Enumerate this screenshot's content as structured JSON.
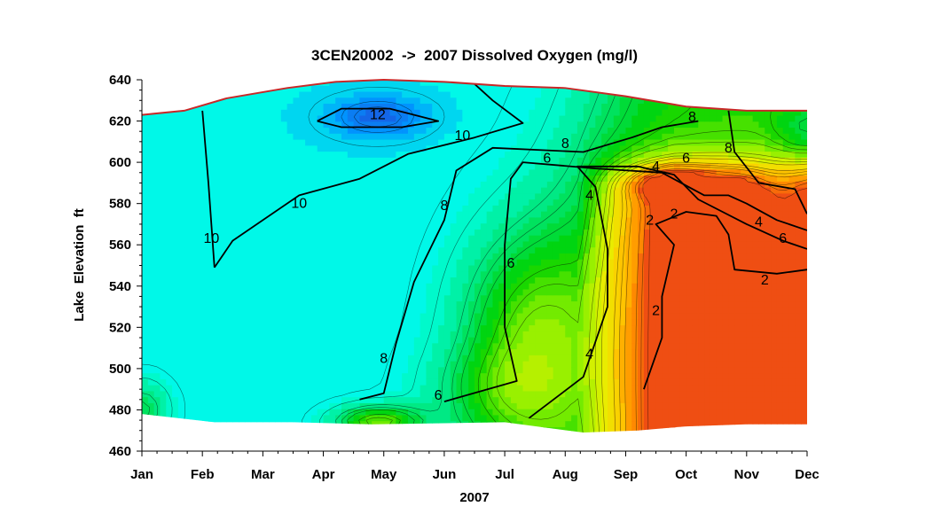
{
  "chart_data": {
    "type": "heatmap",
    "subtype": "contour",
    "title": "3CEN20002  ->  2007 Dissolved Oxygen (mg/l)",
    "xlabel": "2007",
    "ylabel": "Lake  Elevation  ft",
    "x_ticks": [
      "Jan",
      "Feb",
      "Mar",
      "Apr",
      "May",
      "Jun",
      "Jul",
      "Aug",
      "Sep",
      "Oct",
      "Nov",
      "Dec"
    ],
    "y_ticks": [
      460,
      480,
      500,
      520,
      540,
      560,
      580,
      600,
      620,
      640
    ],
    "ylim": [
      460,
      640
    ],
    "xlim": [
      0,
      11
    ],
    "z_range": [
      0,
      14
    ],
    "colormap": [
      "#e8301c",
      "#ff8c00",
      "#ffc800",
      "#e6f000",
      "#8cf000",
      "#00d200",
      "#00e678",
      "#00ffe6",
      "#0096ff",
      "#1e50dc"
    ],
    "surface_color": "#c82828",
    "surface_elevation": [
      {
        "month": 0,
        "elev": 623
      },
      {
        "month": 0.7,
        "elev": 625
      },
      {
        "month": 1.4,
        "elev": 631
      },
      {
        "month": 2.4,
        "elev": 636
      },
      {
        "month": 3.2,
        "elev": 639
      },
      {
        "month": 4.0,
        "elev": 640
      },
      {
        "month": 5.0,
        "elev": 639
      },
      {
        "month": 6.0,
        "elev": 637
      },
      {
        "month": 7.0,
        "elev": 636
      },
      {
        "month": 8.0,
        "elev": 632
      },
      {
        "month": 9.0,
        "elev": 627
      },
      {
        "month": 10.0,
        "elev": 625
      },
      {
        "month": 11.0,
        "elev": 625
      }
    ],
    "bottom_elevation": [
      {
        "month": 0,
        "elev": 478
      },
      {
        "month": 1.2,
        "elev": 474
      },
      {
        "month": 2.5,
        "elev": 474
      },
      {
        "month": 3.8,
        "elev": 473
      },
      {
        "month": 6.0,
        "elev": 474
      },
      {
        "month": 7.3,
        "elev": 469
      },
      {
        "month": 8.2,
        "elev": 470
      },
      {
        "month": 9.0,
        "elev": 472
      },
      {
        "month": 10.0,
        "elev": 473
      },
      {
        "month": 11.0,
        "elev": 473
      }
    ],
    "labeled_contours": [
      {
        "level": 12,
        "points": [
          [
            2.9,
            620
          ],
          [
            3.3,
            626
          ],
          [
            4.1,
            626
          ],
          [
            4.9,
            620
          ],
          [
            4.3,
            617
          ],
          [
            3.3,
            617
          ],
          [
            2.9,
            620
          ]
        ]
      },
      {
        "level": 10,
        "points": [
          [
            1.2,
            549
          ],
          [
            1.1,
            590
          ],
          [
            1.0,
            625
          ]
        ]
      },
      {
        "level": 10,
        "points": [
          [
            1.2,
            549
          ],
          [
            1.5,
            562
          ],
          [
            2.6,
            584
          ],
          [
            3.6,
            592
          ],
          [
            4.4,
            604
          ],
          [
            5.5,
            612
          ],
          [
            6.3,
            619
          ],
          [
            5.8,
            630
          ],
          [
            5.5,
            638
          ]
        ]
      },
      {
        "level": 8,
        "points": [
          [
            3.6,
            485
          ],
          [
            4.0,
            488
          ],
          [
            4.2,
            512
          ],
          [
            4.5,
            542
          ],
          [
            5.0,
            572
          ],
          [
            5.2,
            596
          ],
          [
            5.8,
            607
          ],
          [
            7.3,
            605
          ],
          [
            8.1,
            612
          ],
          [
            8.6,
            617
          ],
          [
            9.2,
            620
          ]
        ]
      },
      {
        "level": 8,
        "points": [
          [
            9.7,
            625
          ],
          [
            9.8,
            605
          ],
          [
            10.2,
            590
          ],
          [
            10.8,
            587
          ],
          [
            11.0,
            575
          ]
        ]
      },
      {
        "level": 6,
        "points": [
          [
            5.0,
            484
          ],
          [
            6.2,
            494
          ],
          [
            6.0,
            520
          ],
          [
            6.0,
            560
          ],
          [
            6.1,
            592
          ],
          [
            6.3,
            600
          ],
          [
            7.5,
            597
          ],
          [
            8.6,
            595
          ],
          [
            9.3,
            584
          ],
          [
            9.7,
            584
          ],
          [
            10.0,
            580
          ],
          [
            10.5,
            572
          ],
          [
            11.0,
            567
          ]
        ]
      },
      {
        "level": 4,
        "points": [
          [
            6.4,
            476
          ],
          [
            7.3,
            496
          ],
          [
            7.7,
            530
          ],
          [
            7.7,
            558
          ],
          [
            7.5,
            588
          ],
          [
            7.2,
            598
          ],
          [
            8.2,
            598
          ],
          [
            8.8,
            594
          ],
          [
            9.2,
            582
          ],
          [
            10.0,
            570
          ],
          [
            10.6,
            562
          ],
          [
            11.0,
            558
          ]
        ]
      },
      {
        "level": 2,
        "points": [
          [
            8.3,
            490
          ],
          [
            8.6,
            515
          ],
          [
            8.6,
            535
          ],
          [
            8.8,
            560
          ],
          [
            8.5,
            570
          ],
          [
            9.0,
            576
          ],
          [
            9.5,
            574
          ],
          [
            9.7,
            565
          ],
          [
            9.8,
            548
          ],
          [
            10.5,
            546
          ],
          [
            11.0,
            548
          ]
        ]
      }
    ],
    "contour_labels": [
      {
        "text": "12",
        "month": 3.9,
        "elev": 623
      },
      {
        "text": "10",
        "month": 1.15,
        "elev": 563
      },
      {
        "text": "10",
        "month": 2.6,
        "elev": 580
      },
      {
        "text": "10",
        "month": 5.3,
        "elev": 613
      },
      {
        "text": "8",
        "month": 5.0,
        "elev": 579
      },
      {
        "text": "8",
        "month": 4.0,
        "elev": 505
      },
      {
        "text": "8",
        "month": 7.0,
        "elev": 609
      },
      {
        "text": "8",
        "month": 9.1,
        "elev": 622
      },
      {
        "text": "8",
        "month": 9.7,
        "elev": 607
      },
      {
        "text": "6",
        "month": 6.1,
        "elev": 551
      },
      {
        "text": "6",
        "month": 6.7,
        "elev": 602
      },
      {
        "text": "6",
        "month": 9.0,
        "elev": 602
      },
      {
        "text": "6",
        "month": 10.6,
        "elev": 563
      },
      {
        "text": "6",
        "month": 4.9,
        "elev": 487
      },
      {
        "text": "4",
        "month": 7.4,
        "elev": 584
      },
      {
        "text": "4",
        "month": 7.4,
        "elev": 507
      },
      {
        "text": "4",
        "month": 8.5,
        "elev": 598
      },
      {
        "text": "4",
        "month": 10.2,
        "elev": 571
      },
      {
        "text": "2",
        "month": 8.4,
        "elev": 572
      },
      {
        "text": "2",
        "month": 8.8,
        "elev": 575
      },
      {
        "text": "2",
        "month": 8.5,
        "elev": 528
      },
      {
        "text": "2",
        "month": 10.3,
        "elev": 543
      }
    ]
  }
}
